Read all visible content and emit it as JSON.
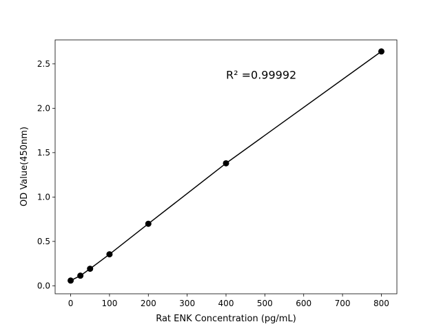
{
  "chart_data": {
    "type": "line",
    "title": "",
    "xlabel": "Rat ENK Concentration (pg/mL)",
    "ylabel": "OD Value(450nm)",
    "xlim": [
      -40,
      840
    ],
    "ylim": [
      -0.09,
      2.77
    ],
    "xticks": [
      0,
      100,
      200,
      300,
      400,
      500,
      600,
      700,
      800
    ],
    "yticks": [
      0.0,
      0.5,
      1.0,
      1.5,
      2.0,
      2.5
    ],
    "xtick_labels": [
      "0",
      "100",
      "200",
      "300",
      "400",
      "500",
      "600",
      "700",
      "800"
    ],
    "ytick_labels": [
      "0.0",
      "0.5",
      "1.0",
      "1.5",
      "2.0",
      "2.5"
    ],
    "grid": false,
    "series": [
      {
        "x": [
          0,
          25,
          50,
          100,
          200,
          400,
          800
        ],
        "y": [
          0.059,
          0.114,
          0.192,
          0.355,
          0.699,
          1.38,
          2.64
        ],
        "color": "#000000",
        "marker": "circle"
      }
    ],
    "annotations": [
      {
        "text": "R² =0.99992",
        "x": 400,
        "y": 2.38
      }
    ]
  }
}
